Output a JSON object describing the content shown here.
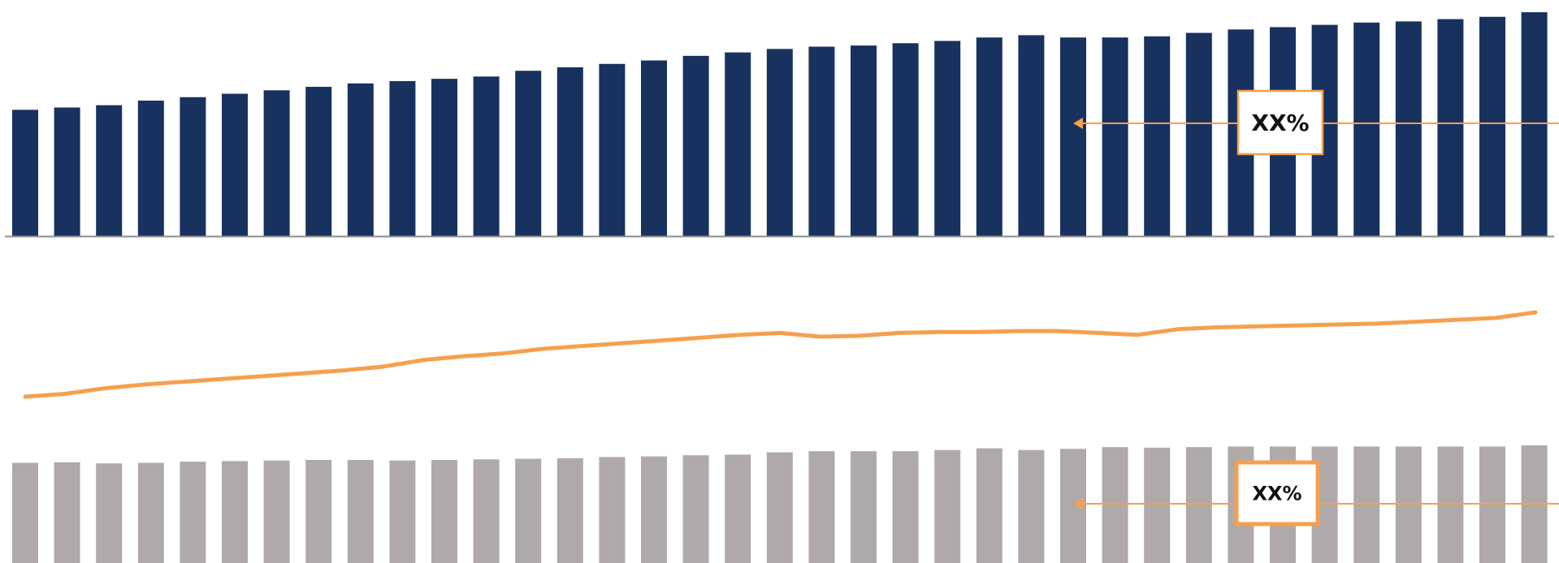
{
  "colors": {
    "navy": "#17325f",
    "orange": "#f6a04d",
    "gray": "#afaaa9",
    "axis": "#8c8c8c",
    "background": "#ffffff"
  },
  "chart_data": [
    {
      "type": "bar",
      "name": "top-bars",
      "values": [
        55,
        56,
        57,
        59,
        60.5,
        62,
        63.5,
        65,
        66.5,
        67.5,
        68.5,
        69.5,
        72,
        73.5,
        75,
        76.5,
        78.5,
        80,
        81.5,
        82.5,
        83,
        84,
        85,
        86.5,
        87.5,
        86.5,
        86.5,
        87,
        88.5,
        90,
        91,
        92,
        93,
        93.5,
        94.5,
        95.5,
        97.5,
        100
      ],
      "ylim": [
        0,
        100
      ],
      "baseline": true,
      "callout": {
        "label": "XX%",
        "from_bar": 25,
        "to_bar": 37
      }
    },
    {
      "type": "line",
      "name": "middle-line",
      "values": [
        0,
        1.5,
        4.5,
        6.5,
        8,
        9.5,
        11,
        12.5,
        14,
        16,
        19.5,
        21.5,
        23,
        25.5,
        27,
        28.5,
        30,
        31.5,
        33,
        34,
        32,
        32.5,
        34,
        34.5,
        34.5,
        35,
        35,
        34,
        33,
        36,
        37,
        37.5,
        38,
        38.5,
        39,
        40,
        41,
        42,
        45
      ],
      "ylim": [
        0,
        45
      ]
    },
    {
      "type": "bar",
      "name": "bottom-bars",
      "values": [
        86,
        86.5,
        85.5,
        86,
        87,
        87.5,
        88,
        88.5,
        88.5,
        88,
        88.5,
        89,
        89.5,
        90,
        91,
        91.5,
        92.5,
        93,
        95,
        96,
        96,
        96,
        97,
        98.5,
        97,
        98,
        99.5,
        99,
        99.5,
        100,
        100,
        100,
        100,
        100,
        100,
        100,
        101,
        101
      ],
      "ylim": [
        0,
        101
      ],
      "callout": {
        "label": "XX%",
        "from_bar": 25,
        "to_bar": 37
      }
    }
  ]
}
